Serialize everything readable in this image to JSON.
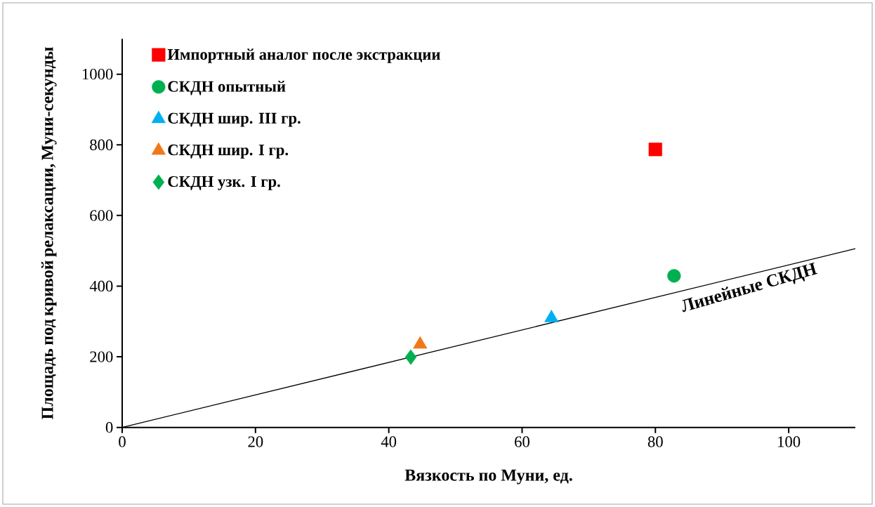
{
  "chart_data": {
    "type": "scatter",
    "xlabel": "Вязкость по Муни, ед.",
    "ylabel": "Площадь под кривой релаксации, Муни-секунды",
    "xlim": [
      0,
      110
    ],
    "ylim": [
      0,
      1100
    ],
    "xticks": [
      0,
      20,
      40,
      60,
      80,
      100
    ],
    "yticks": [
      0,
      200,
      400,
      600,
      800,
      1000
    ],
    "grid": false,
    "legend": "top left",
    "series": [
      {
        "name": "Импортный аналог после экстракции",
        "color": "#ff0000",
        "marker": "square",
        "x": [
          80
        ],
        "values": [
          787
        ]
      },
      {
        "name": "СКДН опытный",
        "color": "#00b050",
        "marker": "circle",
        "x": [
          82.8
        ],
        "values": [
          429
        ]
      },
      {
        "name": "СКДН шир. III гр.",
        "color": "#00b0f0",
        "marker": "triangle",
        "x": [
          64.4
        ],
        "values": [
          310
        ]
      },
      {
        "name": "СКДН шир. I гр.",
        "color": "#f07818",
        "marker": "triangle",
        "x": [
          44.7
        ],
        "values": [
          235
        ]
      },
      {
        "name": "СКДН узк. I гр.",
        "color": "#00b050",
        "marker": "diamond",
        "x": [
          43.3
        ],
        "values": [
          199
        ]
      },
      {
        "name": "Линейные СКДН",
        "type": "line",
        "color": "#000000",
        "marker": "none",
        "x": [
          0,
          110
        ],
        "values": [
          0,
          506
        ]
      }
    ]
  }
}
